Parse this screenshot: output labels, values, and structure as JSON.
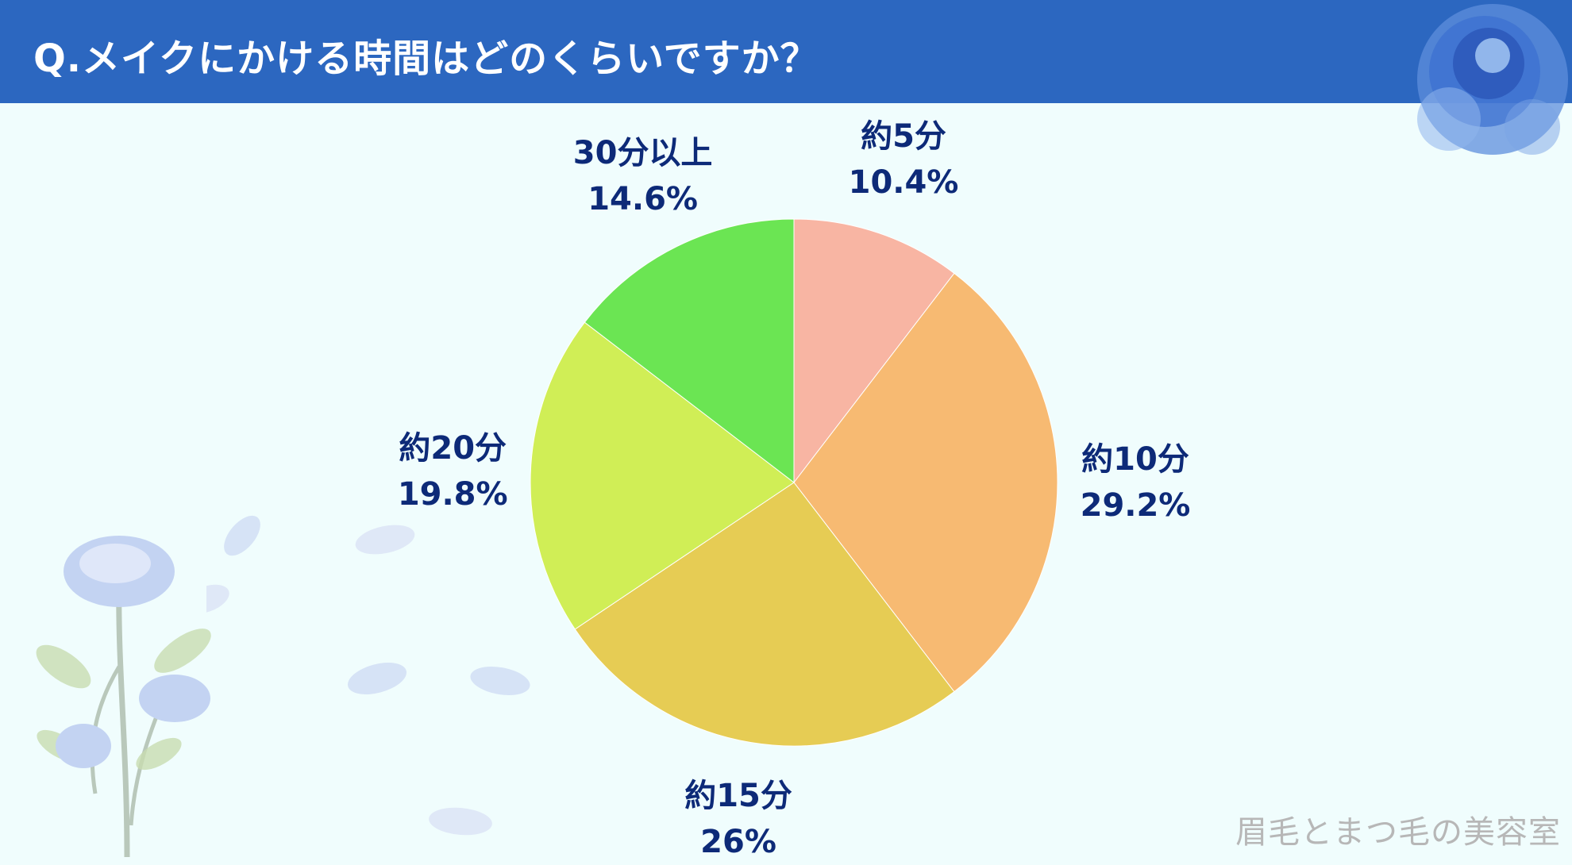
{
  "header": {
    "title": "Q.メイクにかける時間はどのくらいですか？"
  },
  "chart_data": {
    "type": "pie",
    "categories": [
      "約5分",
      "約10分",
      "約15分",
      "約20分",
      "30分以上"
    ],
    "values": [
      10.4,
      29.2,
      26,
      19.8,
      14.6
    ],
    "value_labels": [
      "10.4%",
      "29.2%",
      "26%",
      "19.8%",
      "14.6%"
    ],
    "colors": [
      "#f8b5a3",
      "#f7ba72",
      "#e6cc54",
      "#d0ee56",
      "#6be553"
    ],
    "start": "12 o'clock",
    "direction": "clockwise",
    "legend": "none"
  },
  "watermark": "眉毛とまつ毛の美容室",
  "colors": {
    "header_bg": "#2c67c0",
    "background": "#f0fdfd",
    "label_text": "#0d2a78"
  }
}
